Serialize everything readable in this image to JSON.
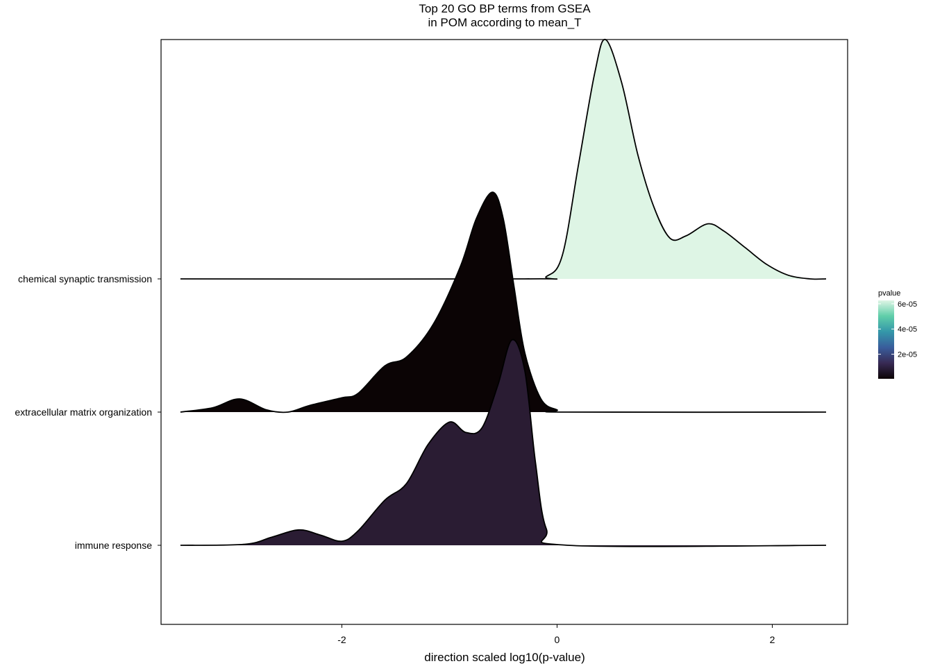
{
  "chart_data": {
    "type": "ridgeline",
    "title_line1": "Top 20 GO BP terms from GSEA",
    "title_line2": "in POM according to mean_T",
    "xlabel": "direction scaled log10(p-value)",
    "ylabel": "",
    "xlim": [
      -3.5,
      2.5
    ],
    "x_ticks": [
      -2,
      0,
      2
    ],
    "x_tick_labels": [
      "-2",
      "0",
      "2"
    ],
    "grid": false,
    "legend": {
      "title": "pvalue",
      "placement": "right",
      "tick_values": [
        2e-05,
        4e-05,
        6e-05
      ],
      "tick_labels": [
        "2e-05",
        "4e-05",
        "6e-05"
      ],
      "range": [
        5e-07,
        6.27e-05
      ],
      "colors": [
        "#0b0405",
        "#382a54",
        "#395d9c",
        "#3497a9",
        "#60cea9",
        "#def5e5"
      ]
    },
    "series": [
      {
        "name": "immune response",
        "fill": "#2a1c33",
        "density_x": [
          -3.5,
          -2.9,
          -2.65,
          -2.4,
          -2.2,
          -2.0,
          -1.85,
          -1.6,
          -1.4,
          -1.2,
          -1.0,
          -0.85,
          -0.7,
          -0.55,
          -0.42,
          -0.3,
          -0.2,
          -0.1,
          0.1,
          2.5
        ],
        "density_y": [
          0.0,
          0.005,
          0.04,
          0.075,
          0.05,
          0.02,
          0.07,
          0.22,
          0.3,
          0.49,
          0.6,
          0.55,
          0.57,
          0.78,
          1.0,
          0.85,
          0.4,
          0.08,
          0.0,
          0.0
        ]
      },
      {
        "name": "extracellular matrix organization",
        "fill": "#0b0405",
        "density_x": [
          -3.5,
          -3.2,
          -2.95,
          -2.7,
          -2.5,
          -2.3,
          -2.0,
          -1.85,
          -1.6,
          -1.4,
          -1.15,
          -0.9,
          -0.75,
          -0.6,
          -0.5,
          -0.4,
          -0.3,
          -0.15,
          0.0,
          0.1,
          2.5
        ],
        "density_y": [
          0.0,
          0.02,
          0.06,
          0.01,
          0.0,
          0.03,
          0.065,
          0.085,
          0.21,
          0.25,
          0.4,
          0.66,
          0.88,
          1.0,
          0.88,
          0.57,
          0.27,
          0.06,
          0.01,
          0.0,
          0.0
        ]
      },
      {
        "name": "chemical synaptic transmission",
        "fill": "#def5e5",
        "density_x": [
          -3.5,
          -0.3,
          -0.1,
          0.05,
          0.2,
          0.35,
          0.45,
          0.6,
          0.75,
          0.9,
          1.05,
          1.2,
          1.4,
          1.55,
          1.75,
          1.95,
          2.15,
          2.35,
          2.5
        ],
        "density_y": [
          0.0,
          0.0,
          0.01,
          0.1,
          0.48,
          0.86,
          1.0,
          0.82,
          0.52,
          0.3,
          0.17,
          0.18,
          0.23,
          0.2,
          0.13,
          0.06,
          0.015,
          0.0,
          0.0
        ]
      }
    ]
  }
}
